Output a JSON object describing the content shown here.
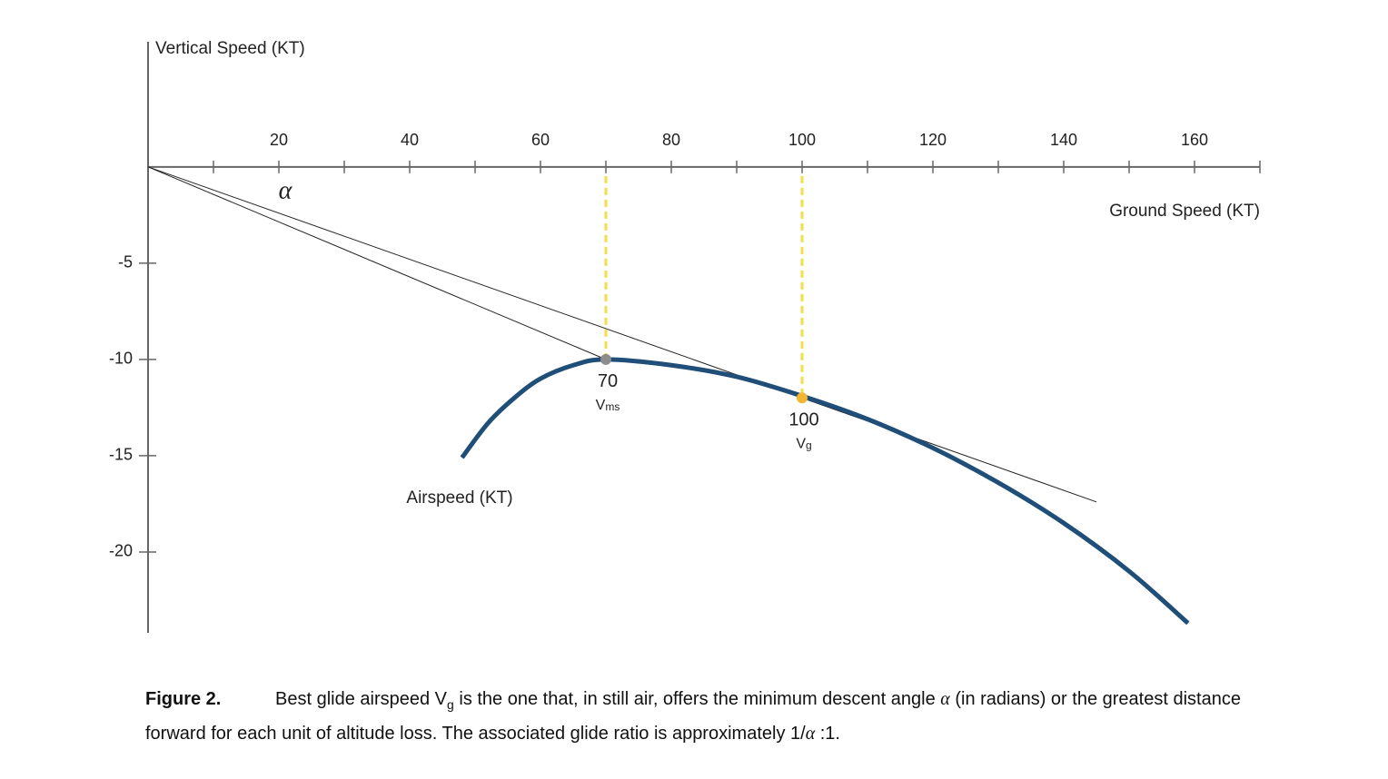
{
  "chart_data": {
    "type": "line",
    "y_axis_label": "Vertical Speed (KT)",
    "x_axis_label": "Ground Speed (KT)",
    "xlim": [
      0,
      170
    ],
    "ylim": [
      -24.2,
      6.5
    ],
    "xticks": [
      20,
      40,
      60,
      80,
      100,
      120,
      140,
      160
    ],
    "xminorticks": [
      10,
      30,
      50,
      70,
      90,
      110,
      130,
      150,
      170
    ],
    "yticks": [
      -5,
      -10,
      -15,
      -20
    ],
    "series": [
      {
        "name": "Airspeed (KT)",
        "color": "#1f4e79",
        "x": [
          48,
          52,
          56,
          60,
          65,
          70,
          80,
          90,
          100,
          110,
          120,
          130,
          140,
          150,
          159
        ],
        "values": [
          -15.1,
          -13.3,
          -12.0,
          -11.0,
          -10.3,
          -10,
          -10.3,
          -10.9,
          -11.9,
          -13.1,
          -14.6,
          -16.4,
          -18.5,
          -21.0,
          -23.7
        ]
      }
    ],
    "tangent_lines": [
      {
        "x": [
          0,
          70
        ],
        "values": [
          0,
          -10
        ]
      },
      {
        "x": [
          0,
          145
        ],
        "values": [
          0,
          -17.4
        ]
      }
    ],
    "points": [
      {
        "x": 70,
        "value": -10,
        "label": "70",
        "symbol": "V",
        "subscript": "ms",
        "color": "#8c8c8c"
      },
      {
        "x": 100,
        "value": -12,
        "label": "100",
        "symbol": "V",
        "subscript": "g",
        "color": "#f2b630"
      }
    ],
    "guide_color": "#f5dc4a",
    "angle_label": "α",
    "caption": {
      "label": "Figure 2.",
      "parts": [
        "Best glide airspeed V",
        "g",
        " is the one that, in still air, offers the minimum descent angle ",
        "α",
        " (in radians) or the greatest distance forward for each unit of altitude loss.  The associated glide ratio is approximately 1/",
        "α",
        " :1."
      ]
    }
  }
}
